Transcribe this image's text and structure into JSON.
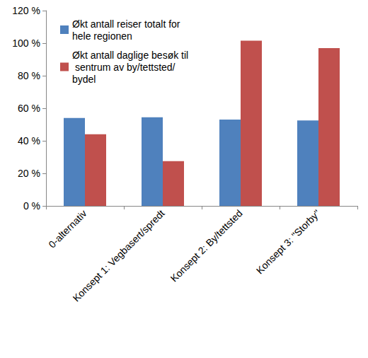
{
  "chart_data": {
    "type": "bar",
    "categories": [
      "0-alternativ",
      "Konsept 1: Vegbasert/spredt",
      "Konsept 2: By/tettsted",
      "Konsept 3: \"Storby\""
    ],
    "series": [
      {
        "name": "Økt antall reiser totalt for hele regionen",
        "color": "#4f81bd",
        "values": [
          54,
          54.5,
          53,
          52.5
        ]
      },
      {
        "name": "Økt antall daglige besøk til sentrum av by/tettsted/bydel",
        "color": "#c0504d",
        "values": [
          44,
          27.5,
          101.5,
          97
        ]
      }
    ],
    "ylim": [
      0,
      120
    ],
    "yticks": [
      {
        "value": 0,
        "label": "0 %"
      },
      {
        "value": 20,
        "label": "20 %"
      },
      {
        "value": 40,
        "label": "40 %"
      },
      {
        "value": 60,
        "label": "60 %"
      },
      {
        "value": 80,
        "label": "80 %"
      },
      {
        "value": 100,
        "label": "100 %"
      },
      {
        "value": 120,
        "label": "120 %"
      }
    ],
    "grid": false,
    "legend": "upper left"
  }
}
